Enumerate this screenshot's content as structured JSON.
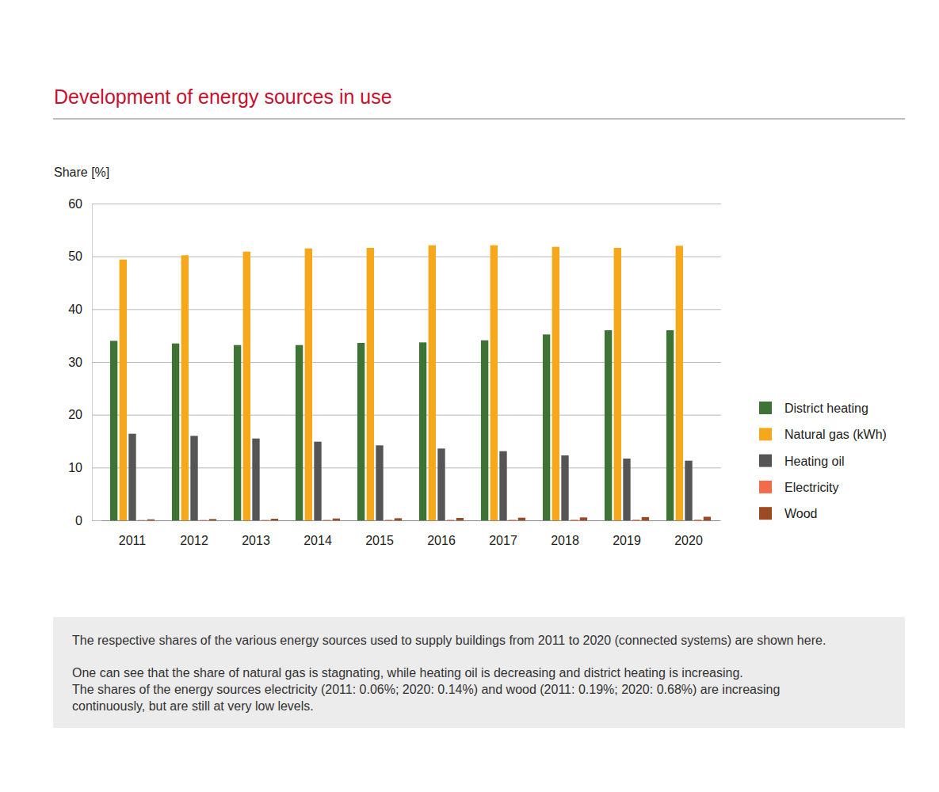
{
  "chart_data": {
    "type": "bar",
    "title": "Development of energy sources in use",
    "y_label": "Share [%]",
    "categories": [
      "2011",
      "2012",
      "2013",
      "2014",
      "2015",
      "2016",
      "2017",
      "2018",
      "2019",
      "2020"
    ],
    "series": [
      {
        "name": "District heating",
        "color": "#3f7235",
        "values": [
          34.0,
          33.5,
          33.2,
          33.2,
          33.6,
          33.7,
          34.1,
          35.2,
          36.0,
          36.0
        ]
      },
      {
        "name": "Natural gas (kWh)",
        "color": "#f5a81c",
        "values": [
          49.4,
          50.2,
          50.9,
          51.5,
          51.6,
          52.1,
          52.1,
          51.8,
          51.6,
          52.0
        ]
      },
      {
        "name": "Heating oil",
        "color": "#555555",
        "values": [
          16.4,
          16.0,
          15.5,
          14.9,
          14.2,
          13.6,
          13.1,
          12.3,
          11.7,
          11.3
        ]
      },
      {
        "name": "Electricity",
        "color": "#f26b4a",
        "values": [
          0.06,
          0.07,
          0.08,
          0.09,
          0.1,
          0.1,
          0.11,
          0.12,
          0.13,
          0.14
        ]
      },
      {
        "name": "Wood",
        "color": "#9b4a23",
        "values": [
          0.19,
          0.25,
          0.3,
          0.35,
          0.4,
          0.45,
          0.5,
          0.55,
          0.62,
          0.68
        ]
      }
    ],
    "ylim": [
      0,
      60
    ],
    "yticks": [
      0,
      10,
      20,
      30,
      40,
      50,
      60
    ],
    "grid": true,
    "legend": "right",
    "annotations": [
      "The respective shares of the various energy sources used to supply buildings from 2011 to 2020 (connected systems) are shown here.",
      "One can see that the share of natural gas is stagnating, while heating oil is decreasing and district heating is increasing.",
      "The shares of the energy sources electricity (2011: 0.06%; 2020: 0.14%) and wood (2011: 0.19%; 2020: 0.68%) are increasing",
      "continuously, but are still at very low levels."
    ]
  }
}
